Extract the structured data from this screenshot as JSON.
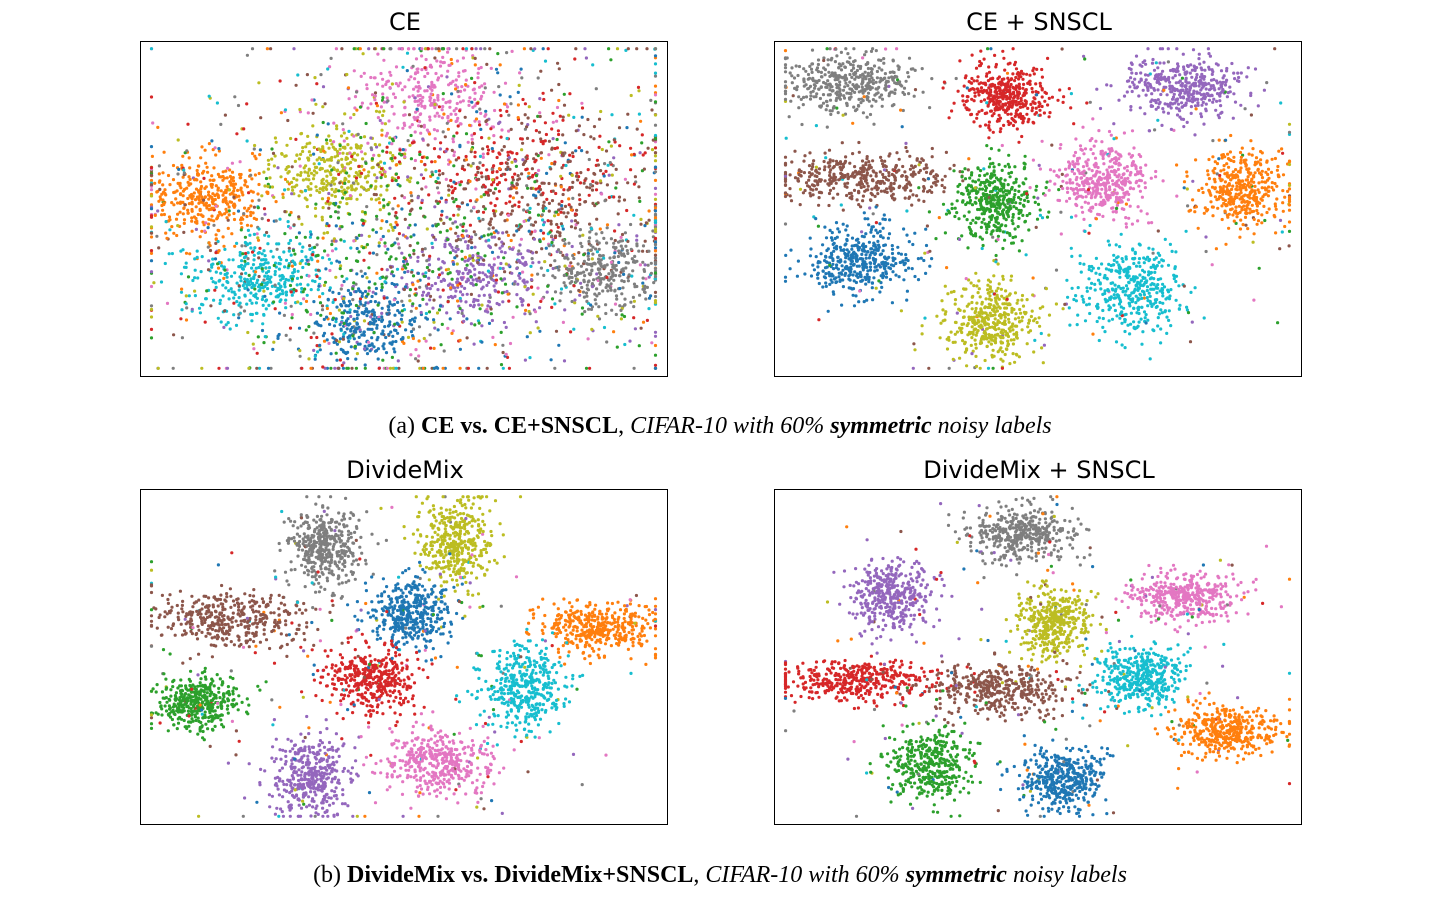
{
  "figure": {
    "caption_a": {
      "label": "(a)",
      "bold": "CE vs. CE+SNSCL",
      "sep": ",",
      "italic_pre": "CIFAR-10 with 60%",
      "italic_bold": "symmetric",
      "italic_post": "noisy labels"
    },
    "caption_b": {
      "label": "(b)",
      "bold": "DivideMix vs. DivideMix+SNSCL",
      "sep": ",",
      "italic_pre": "CIFAR-10 with 60%",
      "italic_bold": "symmetric",
      "italic_post": "noisy labels"
    }
  },
  "colors": {
    "blue": "#1f77b4",
    "orange": "#ff7f0e",
    "green": "#2ca02c",
    "red": "#d62728",
    "purple": "#9467bd",
    "brown": "#8c564b",
    "pink": "#e377c2",
    "gray": "#7f7f7f",
    "olive": "#bcbd22",
    "cyan": "#17becf"
  },
  "chart_data": [
    {
      "type": "scatter",
      "title": "CE",
      "xlabel": "",
      "ylabel": "",
      "clusters": [
        {
          "color": "orange",
          "cx": 0.13,
          "cy": 0.47,
          "sx": 0.055,
          "sy": 0.06,
          "noise": 0.15
        },
        {
          "color": "cyan",
          "cx": 0.22,
          "cy": 0.71,
          "sx": 0.065,
          "sy": 0.065,
          "noise": 0.2
        },
        {
          "color": "olive",
          "cx": 0.37,
          "cy": 0.39,
          "sx": 0.06,
          "sy": 0.07,
          "noise": 0.2
        },
        {
          "color": "pink",
          "cx": 0.55,
          "cy": 0.17,
          "sx": 0.075,
          "sy": 0.08,
          "noise": 0.35
        },
        {
          "color": "red",
          "cx": 0.7,
          "cy": 0.38,
          "sx": 0.1,
          "sy": 0.09,
          "noise": 0.5
        },
        {
          "color": "brown",
          "cx": 0.76,
          "cy": 0.45,
          "sx": 0.1,
          "sy": 0.11,
          "noise": 0.5
        },
        {
          "color": "gray",
          "cx": 0.88,
          "cy": 0.69,
          "sx": 0.055,
          "sy": 0.06,
          "noise": 0.3
        },
        {
          "color": "purple",
          "cx": 0.63,
          "cy": 0.69,
          "sx": 0.07,
          "sy": 0.07,
          "noise": 0.4
        },
        {
          "color": "blue",
          "cx": 0.43,
          "cy": 0.84,
          "sx": 0.05,
          "sy": 0.06,
          "noise": 0.45
        },
        {
          "color": "green",
          "cx": 0.47,
          "cy": 0.62,
          "sx": 0.12,
          "sy": 0.13,
          "noise": 0.6
        }
      ]
    },
    {
      "type": "scatter",
      "title": "CE + SNSCL",
      "xlabel": "",
      "ylabel": "",
      "clusters": [
        {
          "color": "gray",
          "cx": 0.14,
          "cy": 0.12,
          "sx": 0.06,
          "sy": 0.045,
          "noise": 0.05
        },
        {
          "color": "red",
          "cx": 0.44,
          "cy": 0.16,
          "sx": 0.04,
          "sy": 0.05,
          "noise": 0.05
        },
        {
          "color": "purple",
          "cx": 0.78,
          "cy": 0.14,
          "sx": 0.055,
          "sy": 0.045,
          "noise": 0.05
        },
        {
          "color": "brown",
          "cx": 0.16,
          "cy": 0.41,
          "sx": 0.085,
          "sy": 0.035,
          "noise": 0.05
        },
        {
          "color": "green",
          "cx": 0.42,
          "cy": 0.48,
          "sx": 0.04,
          "sy": 0.055,
          "noise": 0.05
        },
        {
          "color": "pink",
          "cx": 0.62,
          "cy": 0.42,
          "sx": 0.045,
          "sy": 0.055,
          "noise": 0.05
        },
        {
          "color": "orange",
          "cx": 0.89,
          "cy": 0.44,
          "sx": 0.045,
          "sy": 0.06,
          "noise": 0.05
        },
        {
          "color": "blue",
          "cx": 0.16,
          "cy": 0.66,
          "sx": 0.05,
          "sy": 0.055,
          "noise": 0.05
        },
        {
          "color": "cyan",
          "cx": 0.68,
          "cy": 0.74,
          "sx": 0.05,
          "sy": 0.065,
          "noise": 0.05
        },
        {
          "color": "olive",
          "cx": 0.41,
          "cy": 0.84,
          "sx": 0.045,
          "sy": 0.06,
          "noise": 0.05
        }
      ]
    },
    {
      "type": "scatter",
      "title": "DivideMix",
      "xlabel": "",
      "ylabel": "",
      "clusters": [
        {
          "color": "gray",
          "cx": 0.35,
          "cy": 0.17,
          "sx": 0.035,
          "sy": 0.06,
          "noise": 0.05
        },
        {
          "color": "olive",
          "cx": 0.6,
          "cy": 0.16,
          "sx": 0.035,
          "sy": 0.07,
          "noise": 0.05
        },
        {
          "color": "brown",
          "cx": 0.17,
          "cy": 0.39,
          "sx": 0.07,
          "sy": 0.04,
          "noise": 0.08
        },
        {
          "color": "blue",
          "cx": 0.51,
          "cy": 0.37,
          "sx": 0.04,
          "sy": 0.05,
          "noise": 0.06
        },
        {
          "color": "orange",
          "cx": 0.87,
          "cy": 0.41,
          "sx": 0.06,
          "sy": 0.04,
          "noise": 0.05
        },
        {
          "color": "red",
          "cx": 0.44,
          "cy": 0.57,
          "sx": 0.045,
          "sy": 0.045,
          "noise": 0.08
        },
        {
          "color": "cyan",
          "cx": 0.73,
          "cy": 0.6,
          "sx": 0.04,
          "sy": 0.065,
          "noise": 0.06
        },
        {
          "color": "green",
          "cx": 0.11,
          "cy": 0.64,
          "sx": 0.04,
          "sy": 0.04,
          "noise": 0.06
        },
        {
          "color": "purple",
          "cx": 0.32,
          "cy": 0.86,
          "sx": 0.04,
          "sy": 0.06,
          "noise": 0.05
        },
        {
          "color": "pink",
          "cx": 0.56,
          "cy": 0.82,
          "sx": 0.05,
          "sy": 0.05,
          "noise": 0.05
        }
      ]
    },
    {
      "type": "scatter",
      "title": "DivideMix + SNSCL",
      "xlabel": "",
      "ylabel": "",
      "clusters": [
        {
          "color": "gray",
          "cx": 0.47,
          "cy": 0.13,
          "sx": 0.05,
          "sy": 0.04,
          "noise": 0.04
        },
        {
          "color": "purple",
          "cx": 0.22,
          "cy": 0.32,
          "sx": 0.04,
          "sy": 0.055,
          "noise": 0.04
        },
        {
          "color": "pink",
          "cx": 0.78,
          "cy": 0.32,
          "sx": 0.05,
          "sy": 0.035,
          "noise": 0.04
        },
        {
          "color": "olive",
          "cx": 0.53,
          "cy": 0.4,
          "sx": 0.035,
          "sy": 0.05,
          "noise": 0.04
        },
        {
          "color": "red",
          "cx": 0.16,
          "cy": 0.57,
          "sx": 0.08,
          "sy": 0.03,
          "noise": 0.05
        },
        {
          "color": "brown",
          "cx": 0.43,
          "cy": 0.6,
          "sx": 0.065,
          "sy": 0.035,
          "noise": 0.05
        },
        {
          "color": "cyan",
          "cx": 0.7,
          "cy": 0.56,
          "sx": 0.04,
          "sy": 0.045,
          "noise": 0.04
        },
        {
          "color": "orange",
          "cx": 0.86,
          "cy": 0.72,
          "sx": 0.05,
          "sy": 0.04,
          "noise": 0.04
        },
        {
          "color": "green",
          "cx": 0.3,
          "cy": 0.82,
          "sx": 0.04,
          "sy": 0.055,
          "noise": 0.05
        },
        {
          "color": "blue",
          "cx": 0.55,
          "cy": 0.87,
          "sx": 0.04,
          "sy": 0.045,
          "noise": 0.04
        }
      ]
    }
  ]
}
